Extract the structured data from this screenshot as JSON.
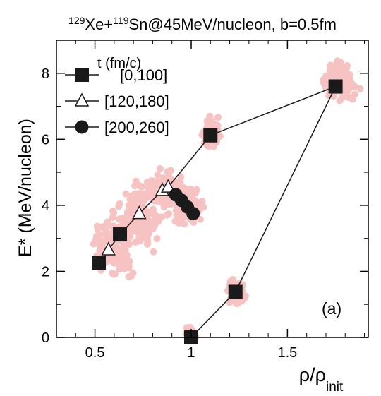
{
  "chart_data": {
    "type": "scatter",
    "title_parts": [
      "129",
      "Xe+",
      "119",
      "Sn@45MeV/nucleon, b=0.5fm"
    ],
    "xlabel_parts": [
      "ρ/ρ",
      "init"
    ],
    "ylabel": "E* (MeV/nucleon)",
    "legend_title": "t (fm/c)",
    "legend_placement": "top-left",
    "panel_label": "(a)",
    "xlim": [
      0.3,
      1.92
    ],
    "ylim": [
      0,
      9
    ],
    "x_ticks": [
      0.5,
      1,
      1.5
    ],
    "x_tick_labels": [
      "0.5",
      "1",
      "1.5"
    ],
    "y_ticks": [
      0,
      2,
      4,
      6,
      8
    ],
    "y_tick_labels": [
      "0",
      "2",
      "4",
      "6",
      "8"
    ],
    "grid": false,
    "colors": {
      "cloud": "#f6c2c2",
      "series": "#1a1a1a",
      "open_marker_fill": "#ffffff"
    },
    "path_order": [
      "[0,100]-0",
      "[120,180]-0",
      "[0,100]-1",
      "[120,180]-1",
      "[120,180]-2",
      "[120,180]-3",
      "[0,100]-2",
      "[0,100]-3",
      "[0,100]-4",
      "[0,100]-5"
    ],
    "series": [
      {
        "name": "[0,100]",
        "marker": "filled-square",
        "x": [
          0.52,
          0.63,
          1.1,
          1.75,
          1.23,
          1.0
        ],
        "y": [
          2.25,
          3.12,
          6.12,
          7.6,
          1.38,
          0.0
        ]
      },
      {
        "name": "[120,180]",
        "marker": "open-triangle",
        "x": [
          0.57,
          0.73,
          0.85,
          0.88
        ],
        "y": [
          2.65,
          3.75,
          4.45,
          4.55
        ]
      },
      {
        "name": "[200,260]",
        "marker": "filled-circle",
        "x": [
          0.92,
          0.95,
          0.98,
          1.01
        ],
        "y": [
          4.32,
          4.15,
          3.95,
          3.75
        ]
      }
    ],
    "clouds": [
      {
        "cx": 1.77,
        "cy": 7.75,
        "sx": 0.055,
        "sy": 0.32,
        "n": 150,
        "rot": 0
      },
      {
        "cx": 1.1,
        "cy": 6.15,
        "sx": 0.035,
        "sy": 0.3,
        "n": 70,
        "rot": 0
      },
      {
        "cx": 1.23,
        "cy": 1.4,
        "sx": 0.035,
        "sy": 0.28,
        "n": 60,
        "rot": 0
      },
      {
        "cx": 0.99,
        "cy": 0.1,
        "sx": 0.025,
        "sy": 0.12,
        "n": 25,
        "rot": 0
      },
      {
        "cx": 0.6,
        "cy": 2.75,
        "sx": 0.07,
        "sy": 0.55,
        "n": 120,
        "rot": 0
      },
      {
        "cx": 0.72,
        "cy": 3.6,
        "sx": 0.08,
        "sy": 0.45,
        "n": 150,
        "rot": 0
      },
      {
        "cx": 0.86,
        "cy": 4.4,
        "sx": 0.08,
        "sy": 0.35,
        "n": 170,
        "rot": 0
      },
      {
        "cx": 0.97,
        "cy": 4.0,
        "sx": 0.06,
        "sy": 0.4,
        "n": 140,
        "rot": 0
      }
    ]
  }
}
